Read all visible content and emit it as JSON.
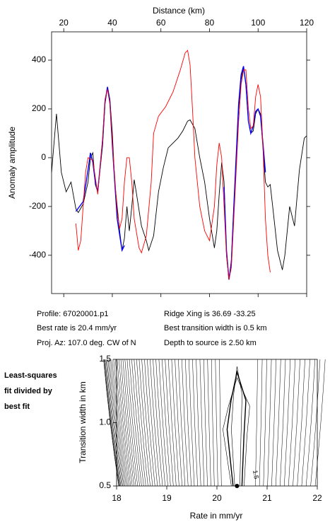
{
  "chart_data": [
    {
      "type": "line",
      "x_label": "Distance (km)",
      "y_label": "Anomaly amplitude",
      "xlim": [
        15,
        120
      ],
      "xticks": [
        20,
        40,
        60,
        80,
        100,
        120
      ],
      "ylim": [
        -557,
        516
      ],
      "yticks": [
        -400,
        -200,
        0,
        200,
        400
      ],
      "series": [
        {
          "color": "#000000",
          "x": [
            15,
            17,
            19,
            21,
            23,
            25,
            26,
            28,
            30,
            31,
            32,
            33,
            34,
            36,
            37,
            38,
            39,
            40,
            41,
            43,
            44,
            45,
            46,
            47,
            48,
            49,
            50,
            52,
            54,
            55,
            57,
            59,
            61,
            63,
            65,
            67,
            69,
            71,
            72,
            74,
            76,
            78,
            80,
            82,
            83,
            84,
            85,
            86,
            87,
            88,
            89,
            90,
            92,
            93,
            94,
            95,
            96,
            97,
            98,
            99,
            100,
            101,
            102,
            103,
            104,
            105,
            106,
            108,
            110,
            111,
            113,
            115,
            117,
            119,
            120
          ],
          "values": [
            -60,
            180,
            -60,
            -140,
            -100,
            -210,
            -225,
            -190,
            -100,
            0,
            20,
            -110,
            -140,
            50,
            220,
            290,
            240,
            100,
            -100,
            -300,
            -380,
            -330,
            -200,
            -300,
            -200,
            -90,
            -150,
            -280,
            -340,
            -380,
            -320,
            -140,
            -40,
            40,
            60,
            80,
            110,
            150,
            155,
            120,
            0,
            -100,
            -250,
            -370,
            -300,
            -150,
            -20,
            -100,
            -400,
            -500,
            -420,
            -200,
            200,
            320,
            370,
            300,
            150,
            100,
            110,
            180,
            200,
            180,
            40,
            -100,
            -120,
            -110,
            -200,
            -380,
            -460,
            -400,
            -200,
            -280,
            -50,
            80,
            90
          ]
        },
        {
          "color": "#0000ff",
          "x": [
            25,
            28,
            30,
            31,
            32,
            33,
            34,
            36,
            37,
            38,
            39,
            40,
            41,
            42,
            44,
            45,
            65,
            86,
            87,
            88,
            89,
            90,
            92,
            93,
            94,
            95,
            96,
            97,
            98,
            99,
            100,
            101,
            102,
            103
          ],
          "values": [
            -220,
            -180,
            -50,
            20,
            -20,
            -100,
            -140,
            70,
            230,
            290,
            230,
            50,
            -100,
            -250,
            -380,
            -360,
            null,
            -120,
            -380,
            -500,
            -430,
            -200,
            220,
            340,
            375,
            300,
            150,
            100,
            130,
            190,
            200,
            170,
            60,
            -60
          ]
        },
        {
          "color": "#ff0000",
          "x": [
            25,
            26,
            27,
            28,
            29,
            30,
            32,
            34,
            36,
            37,
            38,
            39,
            40,
            42,
            43,
            44,
            45,
            46,
            47,
            48,
            49,
            51,
            52,
            54,
            56,
            57,
            59,
            62,
            65,
            68,
            70,
            71,
            72,
            73,
            74,
            76,
            78,
            80,
            82,
            83,
            84,
            85,
            86,
            87,
            88,
            89,
            90,
            92,
            93,
            94,
            95,
            96,
            97,
            98,
            99,
            100,
            101,
            102,
            103,
            104,
            105
          ],
          "values": [
            -270,
            -380,
            -340,
            -200,
            -60,
            0,
            -10,
            -150,
            80,
            240,
            280,
            220,
            60,
            -220,
            -290,
            -250,
            -100,
            0,
            0,
            -100,
            -250,
            -370,
            -390,
            -320,
            -100,
            100,
            170,
            210,
            270,
            360,
            430,
            440,
            380,
            200,
            0,
            -200,
            -300,
            -340,
            -200,
            -30,
            60,
            0,
            -200,
            -400,
            -500,
            -450,
            -250,
            150,
            300,
            360,
            360,
            200,
            120,
            130,
            250,
            300,
            250,
            50,
            -250,
            -400,
            -470
          ]
        }
      ]
    },
    {
      "type": "contour",
      "x_label": "Rate in mm/yr",
      "y_label": "Transition width in km",
      "xlim": [
        18,
        22
      ],
      "xticks": [
        18,
        19,
        20,
        21,
        22
      ],
      "ylim": [
        0.5,
        1.5
      ],
      "yticks": [
        {
          "value": 0.5,
          "label": "0.5"
        },
        {
          "value": 1.0,
          "label": "1.0"
        },
        {
          "value": 1.5,
          "label": "1.5"
        }
      ],
      "best_point": {
        "x": 20.4,
        "y": 0.5
      },
      "contour_label": "1.5"
    }
  ],
  "info": {
    "profile": "Profile: 67020001.p1",
    "rate": "Best rate is 20.4 mm/yr",
    "azimuth": "Proj. Az: 107.0 deg. CW of N",
    "ridge": "Ridge Xing is 36.69 -33.25",
    "width": "Best transition width is 0.5 km",
    "depth": "Depth to source is   2.50 km"
  },
  "note": [
    "Least-squares",
    "fit divided by",
    "best fit"
  ]
}
